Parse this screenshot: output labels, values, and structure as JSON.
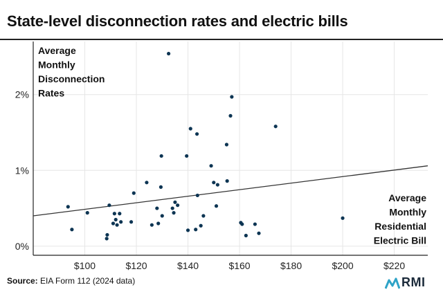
{
  "title": "State-level disconnection rates and electric bills",
  "source_label": "Source:",
  "source_text": "EIA Form 112 (2024 data)",
  "logo_text": "RMI",
  "colors": {
    "dot": "#0d3553",
    "line": "#333333",
    "grid": "#e6e6e6",
    "axis": "#222222",
    "logo_accent": "#2ea3c7"
  },
  "chart_data": {
    "type": "scatter",
    "title": "State-level disconnection rates and electric bills",
    "ylabel_lines": [
      "Average",
      "Monthly",
      "Disconnection",
      "Rates"
    ],
    "xlabel_lines": [
      "Average",
      "Monthly",
      "Residential",
      "Electric Bill"
    ],
    "xlim": [
      80,
      233
    ],
    "ylim": [
      -0.12,
      2.7
    ],
    "xticks": [
      100,
      120,
      140,
      160,
      180,
      200,
      220
    ],
    "xtick_labels": [
      "$100",
      "$120",
      "$140",
      "$160",
      "$180",
      "$200",
      "$220"
    ],
    "yticks": [
      0,
      1,
      2
    ],
    "ytick_labels": [
      "0%",
      "1%",
      "2%"
    ],
    "grid": true,
    "trendline": {
      "x": [
        80,
        233
      ],
      "y": [
        0.4,
        1.06
      ]
    },
    "points": [
      {
        "x": 93.5,
        "y": 0.52
      },
      {
        "x": 95,
        "y": 0.22
      },
      {
        "x": 101,
        "y": 0.44
      },
      {
        "x": 108.5,
        "y": 0.1
      },
      {
        "x": 108.7,
        "y": 0.15
      },
      {
        "x": 109.5,
        "y": 0.54
      },
      {
        "x": 111,
        "y": 0.3
      },
      {
        "x": 111.5,
        "y": 0.43
      },
      {
        "x": 112,
        "y": 0.35
      },
      {
        "x": 112.5,
        "y": 0.28
      },
      {
        "x": 113.5,
        "y": 0.43
      },
      {
        "x": 114,
        "y": 0.32
      },
      {
        "x": 118,
        "y": 0.32
      },
      {
        "x": 119,
        "y": 0.7
      },
      {
        "x": 124,
        "y": 0.84
      },
      {
        "x": 126,
        "y": 0.28
      },
      {
        "x": 128,
        "y": 0.5
      },
      {
        "x": 128.5,
        "y": 0.3
      },
      {
        "x": 129.5,
        "y": 0.78
      },
      {
        "x": 129.7,
        "y": 1.19
      },
      {
        "x": 130,
        "y": 0.4
      },
      {
        "x": 132.5,
        "y": 2.54
      },
      {
        "x": 134,
        "y": 0.5
      },
      {
        "x": 134.5,
        "y": 0.44
      },
      {
        "x": 135,
        "y": 0.58
      },
      {
        "x": 136,
        "y": 0.54
      },
      {
        "x": 139.5,
        "y": 1.19
      },
      {
        "x": 140,
        "y": 0.21
      },
      {
        "x": 141,
        "y": 1.55
      },
      {
        "x": 143,
        "y": 0.22
      },
      {
        "x": 143.5,
        "y": 1.48
      },
      {
        "x": 143.7,
        "y": 0.67
      },
      {
        "x": 145,
        "y": 0.27
      },
      {
        "x": 146,
        "y": 0.4
      },
      {
        "x": 149,
        "y": 1.06
      },
      {
        "x": 150,
        "y": 0.84
      },
      {
        "x": 151,
        "y": 0.53
      },
      {
        "x": 151.5,
        "y": 0.81
      },
      {
        "x": 155,
        "y": 1.34
      },
      {
        "x": 155.2,
        "y": 0.86
      },
      {
        "x": 156.5,
        "y": 1.72
      },
      {
        "x": 157,
        "y": 1.97
      },
      {
        "x": 160.5,
        "y": 0.31
      },
      {
        "x": 161,
        "y": 0.29
      },
      {
        "x": 162.5,
        "y": 0.14
      },
      {
        "x": 166,
        "y": 0.29
      },
      {
        "x": 167.5,
        "y": 0.17
      },
      {
        "x": 174,
        "y": 1.58
      },
      {
        "x": 200,
        "y": 0.37
      }
    ]
  }
}
